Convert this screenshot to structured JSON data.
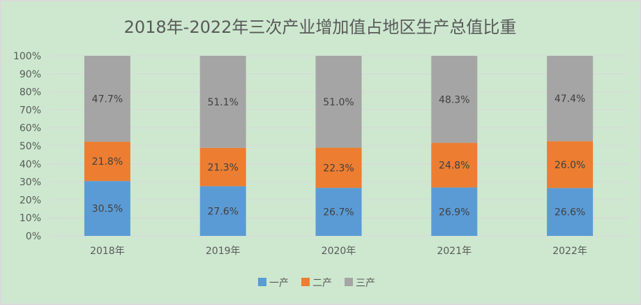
{
  "chart_data": {
    "type": "bar",
    "stacked": "percent",
    "title": "2018年-2022年三次产业增加值占地区生产总值比重",
    "categories": [
      "2018年",
      "2019年",
      "2020年",
      "2021年",
      "2022年"
    ],
    "series": [
      {
        "name": "一产",
        "color": "#5b9bd5",
        "values": [
          30.5,
          27.6,
          26.7,
          26.9,
          26.6
        ],
        "labels": [
          "30.5%",
          "27.6%",
          "26.7%",
          "26.9%",
          "26.6%"
        ]
      },
      {
        "name": "二产",
        "color": "#ed7d31",
        "values": [
          21.8,
          21.3,
          22.3,
          24.8,
          26.0
        ],
        "labels": [
          "21.8%",
          "21.3%",
          "22.3%",
          "24.8%",
          "26.0%"
        ]
      },
      {
        "name": "三产",
        "color": "#a5a5a5",
        "values": [
          47.7,
          51.1,
          51.0,
          48.3,
          47.4
        ],
        "labels": [
          "47.7%",
          "51.1%",
          "51.0%",
          "48.3%",
          "47.4%"
        ]
      }
    ],
    "yticks": [
      "0%",
      "10%",
      "20%",
      "30%",
      "40%",
      "50%",
      "60%",
      "70%",
      "80%",
      "90%",
      "100%"
    ],
    "ylim": [
      0,
      100
    ],
    "grid": true,
    "legend": "bottom"
  }
}
